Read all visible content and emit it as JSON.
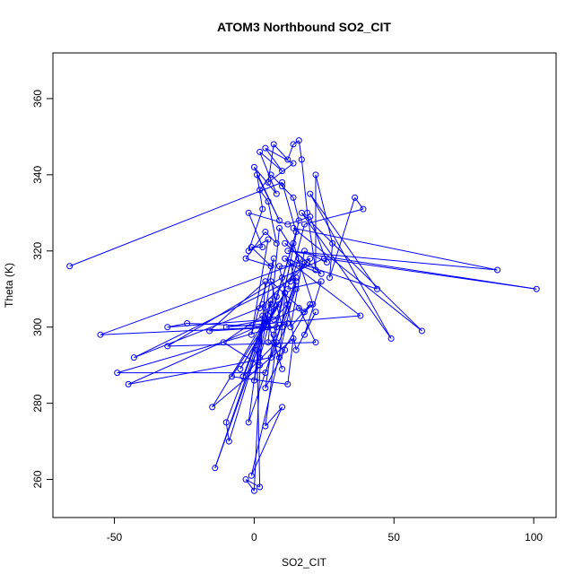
{
  "chart_data": {
    "type": "line",
    "title": "ATOM3 Northbound SO2_CIT",
    "xlabel": "SO2_CIT",
    "ylabel": "Theta (K)",
    "xlim": [
      -72,
      108
    ],
    "ylim": [
      250,
      372
    ],
    "x_ticks": [
      -50,
      0,
      50,
      100
    ],
    "y_ticks": [
      260,
      280,
      300,
      320,
      340,
      360
    ],
    "grid": false,
    "legend": "none",
    "marker": "open-circle",
    "series": [
      {
        "color": "#0000ff",
        "points": [
          [
            -66,
            316
          ],
          [
            10,
            338
          ],
          [
            15,
            325
          ],
          [
            5,
            300
          ],
          [
            -55,
            298
          ],
          [
            20,
            318
          ],
          [
            2,
            305
          ],
          [
            -43,
            292
          ],
          [
            15,
            313
          ],
          [
            4,
            288
          ],
          [
            -49,
            288
          ],
          [
            12,
            301
          ],
          [
            6,
            292
          ],
          [
            -45,
            285
          ],
          [
            16,
            305
          ],
          [
            22,
            296
          ],
          [
            -31,
            295
          ],
          [
            10,
            313
          ],
          [
            25,
            318
          ],
          [
            101,
            310
          ],
          [
            12,
            320
          ],
          [
            87,
            315
          ],
          [
            14,
            326
          ],
          [
            60,
            299
          ],
          [
            17,
            330
          ],
          [
            49,
            297
          ],
          [
            20,
            335
          ],
          [
            44,
            310
          ],
          [
            11,
            318
          ],
          [
            38,
            303
          ],
          [
            -10,
            300
          ],
          [
            5,
            302
          ],
          [
            -31,
            300
          ],
          [
            -24,
            301
          ],
          [
            8,
            300
          ],
          [
            -16,
            299
          ],
          [
            4,
            312
          ],
          [
            2,
            290
          ],
          [
            -11,
            296
          ],
          [
            9,
            306
          ],
          [
            -5,
            289
          ],
          [
            11,
            309
          ],
          [
            -8,
            287
          ],
          [
            12,
            285
          ],
          [
            14,
            297
          ],
          [
            -15,
            279
          ],
          [
            4,
            302
          ],
          [
            -10,
            275
          ],
          [
            -9,
            270
          ],
          [
            6,
            306
          ],
          [
            -14,
            263
          ],
          [
            1,
            294
          ],
          [
            2,
            258
          ],
          [
            -3,
            260
          ],
          [
            0,
            257
          ],
          [
            3,
            303
          ],
          [
            -2,
            275
          ],
          [
            15,
            312
          ],
          [
            -1,
            261
          ],
          [
            10,
            279
          ],
          [
            4,
            274
          ],
          [
            8,
            296
          ],
          [
            -4,
            287
          ],
          [
            6,
            307
          ],
          [
            0,
            286
          ],
          [
            7,
            318
          ],
          [
            -1,
            298
          ],
          [
            5,
            323
          ],
          [
            -2,
            320
          ],
          [
            3,
            331
          ],
          [
            1,
            340
          ],
          [
            9,
            328
          ],
          [
            0,
            342
          ],
          [
            8,
            335
          ],
          [
            2,
            346
          ],
          [
            10,
            341
          ],
          [
            4,
            347
          ],
          [
            14,
            343
          ],
          [
            5,
            338
          ],
          [
            7,
            348
          ],
          [
            12,
            344
          ],
          [
            14,
            348
          ],
          [
            16,
            349
          ],
          [
            17,
            344
          ],
          [
            19,
            330
          ],
          [
            22,
            315
          ],
          [
            22,
            340
          ],
          [
            28,
            322
          ],
          [
            27,
            313
          ],
          [
            36,
            334
          ],
          [
            39,
            331
          ],
          [
            18,
            327
          ],
          [
            12,
            310
          ],
          [
            24,
            312
          ],
          [
            18,
            298
          ],
          [
            22,
            304
          ],
          [
            15,
            294
          ],
          [
            11,
            309
          ],
          [
            9,
            292
          ],
          [
            20,
            306
          ],
          [
            13,
            300
          ],
          [
            18,
            320
          ],
          [
            26,
            317
          ],
          [
            20,
            329
          ],
          [
            12,
            327
          ],
          [
            -2,
            330
          ],
          [
            3,
            321
          ],
          [
            -1,
            321
          ],
          [
            6,
            316
          ],
          [
            -3,
            318
          ],
          [
            4,
            325
          ],
          [
            8,
            322
          ],
          [
            5,
            333
          ],
          [
            2,
            336
          ],
          [
            6,
            340
          ],
          [
            10,
            337
          ],
          [
            14,
            334
          ],
          [
            16,
            328
          ],
          [
            7,
            296
          ],
          [
            10,
            289
          ],
          [
            3,
            306
          ],
          [
            7,
            302
          ],
          [
            12,
            306
          ],
          [
            9,
            316
          ],
          [
            17,
            316
          ],
          [
            24,
            314
          ],
          [
            11,
            322
          ],
          [
            19,
            317
          ],
          [
            13,
            312
          ],
          [
            16,
            318
          ],
          [
            9,
            326
          ],
          [
            5,
            296
          ],
          [
            11,
            294
          ],
          [
            4,
            284
          ],
          [
            7,
            298
          ],
          [
            13,
            317
          ],
          [
            15,
            310
          ],
          [
            10,
            300
          ],
          [
            6,
            312
          ],
          [
            18,
            304
          ],
          [
            21,
            306
          ],
          [
            14,
            322
          ],
          [
            8,
            308
          ],
          [
            2,
            292
          ]
        ]
      }
    ]
  }
}
